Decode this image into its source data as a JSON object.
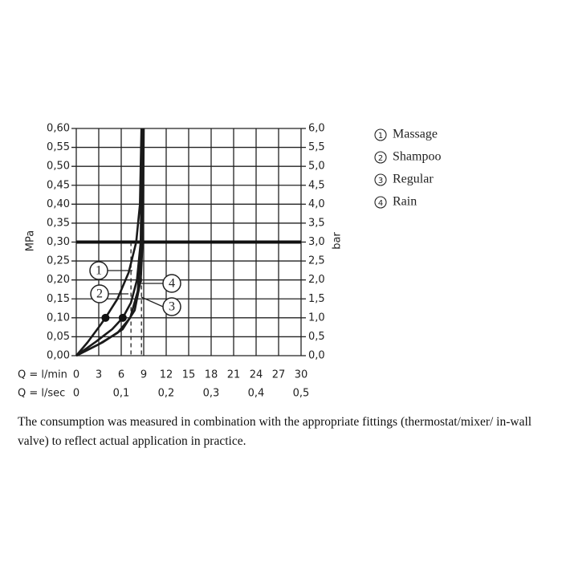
{
  "chart_data": {
    "type": "line",
    "y_label": "MPa",
    "y2_label": "bar",
    "x_label": "Q = l/min",
    "x2_label": "Q = l/sec",
    "xlim": [
      0,
      30
    ],
    "xticks": [
      0,
      3,
      6,
      9,
      12,
      15,
      18,
      21,
      24,
      27,
      30
    ],
    "x2lim": [
      0,
      0.5
    ],
    "x2ticks": [
      0,
      {
        "value": 0.1,
        "label": "0,1"
      },
      {
        "value": 0.2,
        "label": "0,2"
      },
      {
        "value": 0.3,
        "label": "0,3"
      },
      {
        "value": 0.4,
        "label": "0,4"
      },
      {
        "value": 0.5,
        "label": "0,5"
      }
    ],
    "ylim": [
      0,
      0.6
    ],
    "yticks": [
      {
        "value": 0,
        "label": "0,00"
      },
      {
        "value": 0.05,
        "label": "0,05"
      },
      {
        "value": 0.1,
        "label": "0,10"
      },
      {
        "value": 0.15,
        "label": "0,15"
      },
      {
        "value": 0.2,
        "label": "0,20"
      },
      {
        "value": 0.25,
        "label": "0,25"
      },
      {
        "value": 0.3,
        "label": "0,30"
      },
      {
        "value": 0.35,
        "label": "0,35"
      },
      {
        "value": 0.4,
        "label": "0,40"
      },
      {
        "value": 0.45,
        "label": "0,45"
      },
      {
        "value": 0.5,
        "label": "0,50"
      },
      {
        "value": 0.55,
        "label": "0,55"
      },
      {
        "value": 0.6,
        "label": "0,60"
      }
    ],
    "y2lim": [
      0,
      6
    ],
    "y2ticks": [
      {
        "value": 0,
        "label": "0,0"
      },
      {
        "value": 0.5,
        "label": "0,5"
      },
      {
        "value": 1,
        "label": "1,0"
      },
      {
        "value": 1.5,
        "label": "1,5"
      },
      {
        "value": 2,
        "label": "2,0"
      },
      {
        "value": 2.5,
        "label": "2,5"
      },
      {
        "value": 3,
        "label": "3,0"
      },
      {
        "value": 3.5,
        "label": "3,5"
      },
      {
        "value": 4,
        "label": "4,0"
      },
      {
        "value": 4.5,
        "label": "4,5"
      },
      {
        "value": 5,
        "label": "5,0"
      },
      {
        "value": 5.5,
        "label": "5,5"
      },
      {
        "value": 6,
        "label": "6,0"
      }
    ],
    "grid": true,
    "reference_y": 0.3,
    "dashed_x": [
      7.3,
      8.7
    ],
    "points": [
      {
        "x": 3.9,
        "y": 0.1
      },
      {
        "x": 6.2,
        "y": 0.1
      }
    ],
    "series": [
      {
        "label": "1",
        "name": "Massage",
        "color": "#1a1a1a",
        "x": [
          0,
          1.5,
          3,
          3.9,
          5.5,
          7,
          8,
          8.5,
          8.7
        ],
        "values": [
          0,
          0.035,
          0.075,
          0.1,
          0.15,
          0.22,
          0.3,
          0.4,
          0.6
        ]
      },
      {
        "label": "2",
        "name": "Shampoo",
        "color": "#1a1a1a",
        "x": [
          0,
          2.5,
          4.8,
          6.2,
          7.3,
          8.1,
          8.6,
          8.8
        ],
        "values": [
          0,
          0.035,
          0.07,
          0.1,
          0.14,
          0.2,
          0.3,
          0.6
        ]
      },
      {
        "label": "3",
        "name": "Regular",
        "color": "#1a1a1a",
        "x": [
          0,
          3,
          5.5,
          7.2,
          8.2,
          8.7,
          8.9
        ],
        "values": [
          0,
          0.03,
          0.06,
          0.1,
          0.17,
          0.3,
          0.6
        ]
      },
      {
        "label": "4",
        "name": "Rain",
        "color": "#1a1a1a",
        "x": [
          0,
          3.5,
          6.2,
          7.8,
          8.6,
          8.9,
          9
        ],
        "values": [
          0,
          0.035,
          0.07,
          0.12,
          0.2,
          0.32,
          0.6
        ]
      }
    ],
    "note": "The consumption was measured in combination with the appropriate fittings (thermostat/mixer/ in-wall valve) to reflect actual application in practice."
  }
}
